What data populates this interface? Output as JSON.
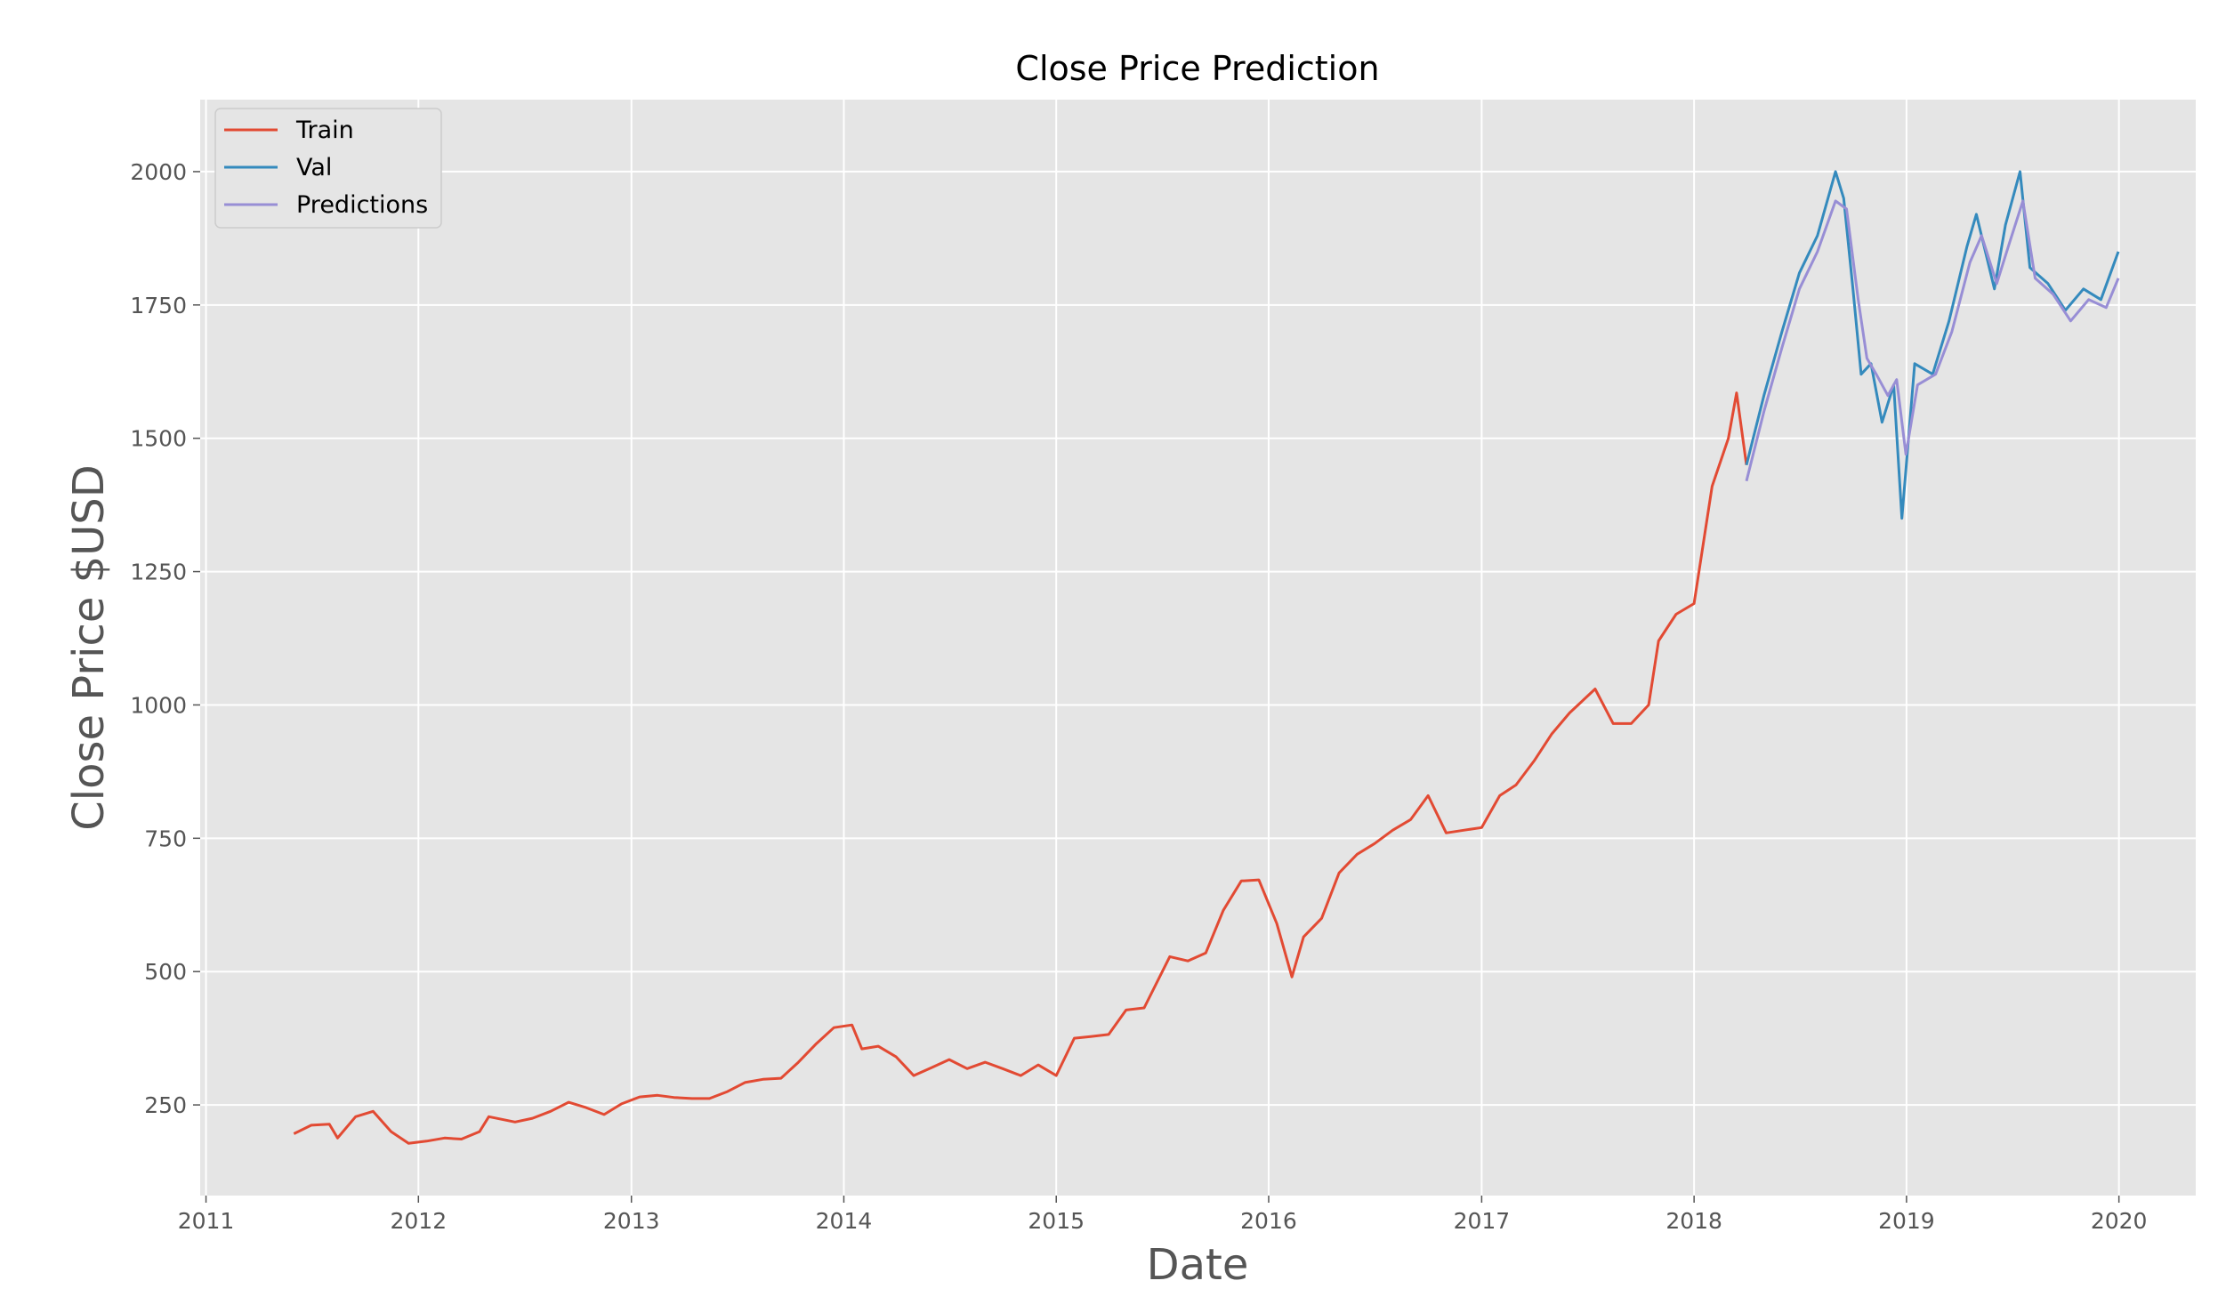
{
  "chart_data": {
    "type": "line",
    "title": "Close Price Prediction",
    "xlabel": "Date",
    "ylabel": "Close Price $USD",
    "xlim": [
      "2010-12-22",
      "2020-05-12"
    ],
    "ylim": [
      80,
      2135
    ],
    "x_ticks": [
      "2011",
      "2012",
      "2013",
      "2014",
      "2015",
      "2016",
      "2017",
      "2018",
      "2019",
      "2020"
    ],
    "y_ticks": [
      250,
      500,
      750,
      1000,
      1250,
      1500,
      1750,
      2000
    ],
    "grid": true,
    "legend_position": "top-left",
    "series": [
      {
        "name": "Train",
        "color": "#E24A33",
        "points": [
          [
            "2011-06-01",
            196
          ],
          [
            "2011-07-01",
            212
          ],
          [
            "2011-08-01",
            214
          ],
          [
            "2011-08-15",
            188
          ],
          [
            "2011-09-15",
            228
          ],
          [
            "2011-10-15",
            238
          ],
          [
            "2011-11-15",
            200
          ],
          [
            "2011-12-15",
            178
          ],
          [
            "2012-01-15",
            182
          ],
          [
            "2012-02-15",
            188
          ],
          [
            "2012-03-15",
            186
          ],
          [
            "2012-04-15",
            200
          ],
          [
            "2012-05-01",
            228
          ],
          [
            "2012-06-15",
            218
          ],
          [
            "2012-07-15",
            225
          ],
          [
            "2012-08-15",
            238
          ],
          [
            "2012-09-15",
            255
          ],
          [
            "2012-10-15",
            245
          ],
          [
            "2012-11-15",
            232
          ],
          [
            "2012-12-15",
            252
          ],
          [
            "2013-01-15",
            265
          ],
          [
            "2013-02-15",
            268
          ],
          [
            "2013-03-15",
            264
          ],
          [
            "2013-04-15",
            262
          ],
          [
            "2013-05-15",
            262
          ],
          [
            "2013-06-15",
            275
          ],
          [
            "2013-07-15",
            292
          ],
          [
            "2013-08-15",
            298
          ],
          [
            "2013-09-15",
            300
          ],
          [
            "2013-10-15",
            330
          ],
          [
            "2013-11-15",
            365
          ],
          [
            "2013-12-15",
            395
          ],
          [
            "2014-01-15",
            400
          ],
          [
            "2014-02-01",
            355
          ],
          [
            "2014-03-01",
            360
          ],
          [
            "2014-04-01",
            340
          ],
          [
            "2014-05-01",
            305
          ],
          [
            "2014-06-01",
            320
          ],
          [
            "2014-07-01",
            335
          ],
          [
            "2014-08-01",
            318
          ],
          [
            "2014-09-01",
            330
          ],
          [
            "2014-10-01",
            318
          ],
          [
            "2014-11-01",
            305
          ],
          [
            "2014-12-01",
            325
          ],
          [
            "2015-01-01",
            305
          ],
          [
            "2015-02-01",
            375
          ],
          [
            "2015-03-01",
            378
          ],
          [
            "2015-04-01",
            382
          ],
          [
            "2015-05-01",
            428
          ],
          [
            "2015-06-01",
            432
          ],
          [
            "2015-07-15",
            528
          ],
          [
            "2015-08-15",
            520
          ],
          [
            "2015-09-15",
            535
          ],
          [
            "2015-10-15",
            615
          ],
          [
            "2015-11-15",
            670
          ],
          [
            "2015-12-15",
            672
          ],
          [
            "2016-01-15",
            590
          ],
          [
            "2016-02-10",
            490
          ],
          [
            "2016-03-01",
            565
          ],
          [
            "2016-04-01",
            600
          ],
          [
            "2016-05-01",
            685
          ],
          [
            "2016-06-01",
            720
          ],
          [
            "2016-07-01",
            740
          ],
          [
            "2016-08-01",
            765
          ],
          [
            "2016-09-01",
            785
          ],
          [
            "2016-10-01",
            830
          ],
          [
            "2016-11-01",
            760
          ],
          [
            "2016-12-01",
            765
          ],
          [
            "2017-01-01",
            770
          ],
          [
            "2017-02-01",
            830
          ],
          [
            "2017-03-01",
            850
          ],
          [
            "2017-04-01",
            895
          ],
          [
            "2017-05-01",
            945
          ],
          [
            "2017-06-01",
            985
          ],
          [
            "2017-07-15",
            1030
          ],
          [
            "2017-08-15",
            965
          ],
          [
            "2017-09-15",
            965
          ],
          [
            "2017-10-15",
            1000
          ],
          [
            "2017-11-01",
            1120
          ],
          [
            "2017-12-01",
            1170
          ],
          [
            "2018-01-01",
            1190
          ],
          [
            "2018-02-01",
            1410
          ],
          [
            "2018-03-01",
            1500
          ],
          [
            "2018-03-15",
            1585
          ],
          [
            "2018-04-01",
            1450
          ]
        ]
      },
      {
        "name": "Val",
        "color": "#348ABD",
        "points": [
          [
            "2018-04-01",
            1450
          ],
          [
            "2018-05-01",
            1580
          ],
          [
            "2018-06-01",
            1700
          ],
          [
            "2018-07-01",
            1810
          ],
          [
            "2018-08-01",
            1880
          ],
          [
            "2018-09-01",
            2000
          ],
          [
            "2018-09-15",
            1950
          ],
          [
            "2018-10-01",
            1780
          ],
          [
            "2018-10-15",
            1620
          ],
          [
            "2018-11-01",
            1640
          ],
          [
            "2018-11-20",
            1530
          ],
          [
            "2018-12-10",
            1600
          ],
          [
            "2018-12-24",
            1350
          ],
          [
            "2019-01-15",
            1640
          ],
          [
            "2019-02-15",
            1620
          ],
          [
            "2019-03-15",
            1720
          ],
          [
            "2019-04-15",
            1860
          ],
          [
            "2019-05-01",
            1920
          ],
          [
            "2019-06-01",
            1780
          ],
          [
            "2019-06-20",
            1900
          ],
          [
            "2019-07-15",
            2000
          ],
          [
            "2019-08-01",
            1820
          ],
          [
            "2019-09-01",
            1790
          ],
          [
            "2019-10-01",
            1740
          ],
          [
            "2019-11-01",
            1780
          ],
          [
            "2019-12-01",
            1760
          ],
          [
            "2019-12-31",
            1850
          ]
        ]
      },
      {
        "name": "Predictions",
        "color": "#988ED5",
        "points": [
          [
            "2018-04-01",
            1420
          ],
          [
            "2018-05-01",
            1550
          ],
          [
            "2018-06-01",
            1670
          ],
          [
            "2018-07-01",
            1780
          ],
          [
            "2018-08-01",
            1850
          ],
          [
            "2018-09-01",
            1945
          ],
          [
            "2018-09-20",
            1930
          ],
          [
            "2018-10-10",
            1760
          ],
          [
            "2018-10-25",
            1650
          ],
          [
            "2018-11-10",
            1620
          ],
          [
            "2018-11-30",
            1580
          ],
          [
            "2018-12-15",
            1610
          ],
          [
            "2018-12-31",
            1470
          ],
          [
            "2019-01-20",
            1600
          ],
          [
            "2019-02-20",
            1620
          ],
          [
            "2019-03-20",
            1700
          ],
          [
            "2019-04-20",
            1830
          ],
          [
            "2019-05-10",
            1880
          ],
          [
            "2019-06-05",
            1790
          ],
          [
            "2019-06-25",
            1860
          ],
          [
            "2019-07-20",
            1945
          ],
          [
            "2019-08-10",
            1800
          ],
          [
            "2019-09-10",
            1770
          ],
          [
            "2019-10-10",
            1720
          ],
          [
            "2019-11-10",
            1760
          ],
          [
            "2019-12-10",
            1745
          ],
          [
            "2019-12-31",
            1800
          ]
        ]
      }
    ]
  }
}
